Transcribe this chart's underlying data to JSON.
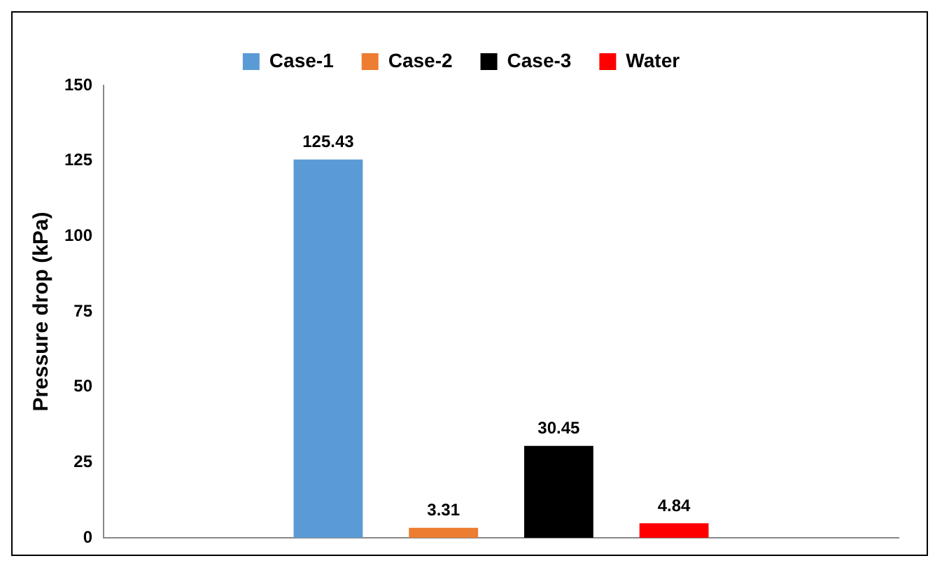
{
  "chart_data": {
    "type": "bar",
    "ylabel": "Pressure drop (kPa)",
    "categories": [
      null
    ],
    "series": [
      {
        "name": "Case-1",
        "color": "#5b9bd5",
        "values": [
          125.43
        ]
      },
      {
        "name": "Case-2",
        "color": "#ed7d31",
        "values": [
          3.31
        ]
      },
      {
        "name": "Case-3",
        "color": "#000000",
        "values": [
          30.45
        ]
      },
      {
        "name": "Water",
        "color": "#ff0000",
        "values": [
          4.84
        ]
      }
    ],
    "ylim": [
      0,
      150
    ],
    "yticks": [
      0,
      25,
      50,
      75,
      100,
      125,
      150
    ],
    "grid": false,
    "legend": "top",
    "data_labels": true
  }
}
